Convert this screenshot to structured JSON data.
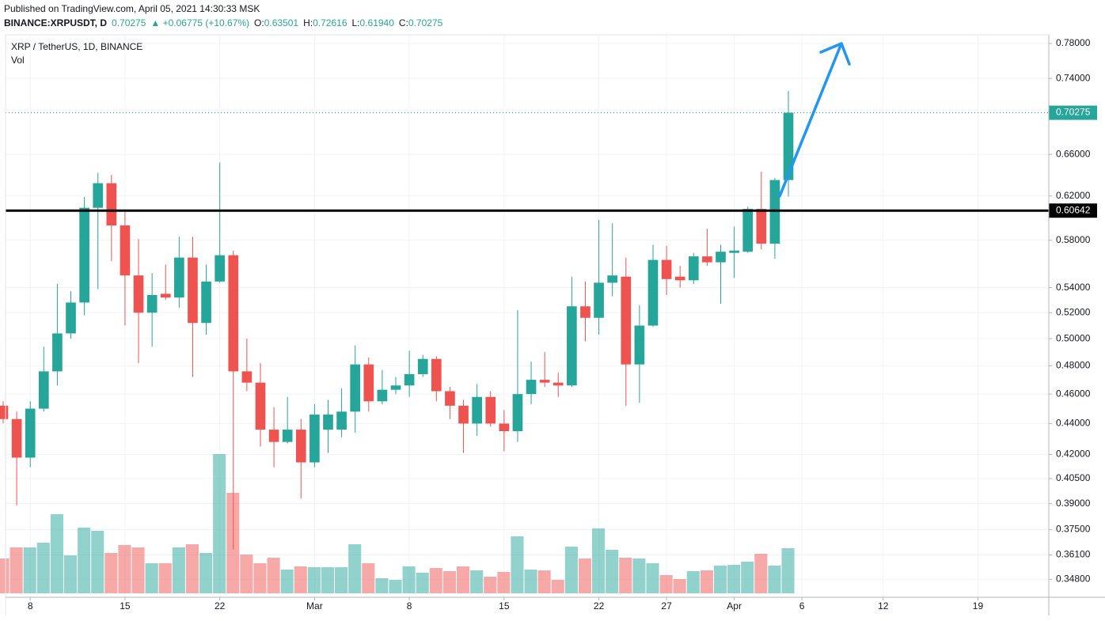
{
  "header": {
    "published": "Published on TradingView.com, April 05, 2021 14:30:33 MSK",
    "symbol": "BINANCE:XRPUSDT, D",
    "last": "0.70275",
    "change": "▲ +0.06775 (+10.67%)",
    "ohlc": [
      {
        "label": "O:",
        "value": "0.63501"
      },
      {
        "label": "H:",
        "value": "0.72616"
      },
      {
        "label": "L:",
        "value": "0.61940"
      },
      {
        "label": "C:",
        "value": "0.70275"
      }
    ]
  },
  "chart_data": {
    "type": "candlestick",
    "title": "XRP / TetherUS, 1D, BINANCE",
    "volume_label": "Vol",
    "x": [
      "2021-02-06",
      "2021-02-07",
      "2021-02-08",
      "2021-02-09",
      "2021-02-10",
      "2021-02-11",
      "2021-02-12",
      "2021-02-13",
      "2021-02-14",
      "2021-02-15",
      "2021-02-16",
      "2021-02-17",
      "2021-02-18",
      "2021-02-19",
      "2021-02-20",
      "2021-02-21",
      "2021-02-22",
      "2021-02-23",
      "2021-02-24",
      "2021-02-25",
      "2021-02-26",
      "2021-02-27",
      "2021-02-28",
      "2021-03-01",
      "2021-03-02",
      "2021-03-03",
      "2021-03-04",
      "2021-03-05",
      "2021-03-06",
      "2021-03-07",
      "2021-03-08",
      "2021-03-09",
      "2021-03-10",
      "2021-03-11",
      "2021-03-12",
      "2021-03-13",
      "2021-03-14",
      "2021-03-15",
      "2021-03-16",
      "2021-03-17",
      "2021-03-18",
      "2021-03-19",
      "2021-03-20",
      "2021-03-21",
      "2021-03-22",
      "2021-03-23",
      "2021-03-24",
      "2021-03-25",
      "2021-03-26",
      "2021-03-27",
      "2021-03-28",
      "2021-03-29",
      "2021-03-30",
      "2021-03-31",
      "2021-04-01",
      "2021-04-02",
      "2021-04-03",
      "2021-04-04",
      "2021-04-05"
    ],
    "open": [
      0.452,
      0.443,
      0.418,
      0.45,
      0.476,
      0.504,
      0.528,
      0.609,
      0.632,
      0.593,
      0.55,
      0.52,
      0.535,
      0.532,
      0.565,
      0.512,
      0.545,
      0.567,
      0.476,
      0.468,
      0.436,
      0.428,
      0.436,
      0.415,
      0.436,
      0.436,
      0.448,
      0.481,
      0.455,
      0.463,
      0.466,
      0.474,
      0.485,
      0.462,
      0.452,
      0.44,
      0.458,
      0.44,
      0.435,
      0.46,
      0.47,
      0.468,
      0.466,
      0.525,
      0.516,
      0.544,
      0.549,
      0.481,
      0.51,
      0.563,
      0.549,
      0.546,
      0.566,
      0.561,
      0.569,
      0.57,
      0.608,
      0.577,
      0.63501
    ],
    "high": [
      0.455,
      0.448,
      0.455,
      0.494,
      0.543,
      0.537,
      0.619,
      0.642,
      0.64,
      0.605,
      0.581,
      0.552,
      0.559,
      0.583,
      0.583,
      0.559,
      0.652,
      0.571,
      0.5,
      0.482,
      0.451,
      0.458,
      0.443,
      0.453,
      0.456,
      0.464,
      0.495,
      0.486,
      0.477,
      0.472,
      0.491,
      0.488,
      0.487,
      0.465,
      0.456,
      0.467,
      0.462,
      0.449,
      0.522,
      0.483,
      0.49,
      0.475,
      0.549,
      0.545,
      0.598,
      0.595,
      0.565,
      0.526,
      0.576,
      0.575,
      0.558,
      0.569,
      0.59,
      0.576,
      0.592,
      0.61,
      0.643,
      0.637,
      0.72616
    ],
    "low": [
      0.44,
      0.389,
      0.412,
      0.448,
      0.466,
      0.5,
      0.518,
      0.539,
      0.562,
      0.51,
      0.482,
      0.494,
      0.53,
      0.524,
      0.472,
      0.503,
      0.544,
      0.364,
      0.462,
      0.425,
      0.412,
      0.427,
      0.393,
      0.412,
      0.421,
      0.431,
      0.434,
      0.448,
      0.453,
      0.46,
      0.458,
      0.472,
      0.455,
      0.443,
      0.421,
      0.432,
      0.438,
      0.422,
      0.428,
      0.453,
      0.465,
      0.458,
      0.465,
      0.498,
      0.503,
      0.533,
      0.452,
      0.454,
      0.509,
      0.534,
      0.54,
      0.543,
      0.558,
      0.527,
      0.548,
      0.569,
      0.572,
      0.564,
      0.6194
    ],
    "close": [
      0.443,
      0.418,
      0.45,
      0.476,
      0.504,
      0.528,
      0.609,
      0.632,
      0.593,
      0.55,
      0.52,
      0.534,
      0.532,
      0.565,
      0.512,
      0.545,
      0.567,
      0.476,
      0.468,
      0.436,
      0.428,
      0.436,
      0.415,
      0.446,
      0.446,
      0.448,
      0.481,
      0.455,
      0.463,
      0.466,
      0.474,
      0.485,
      0.462,
      0.452,
      0.44,
      0.458,
      0.44,
      0.435,
      0.46,
      0.47,
      0.468,
      0.466,
      0.525,
      0.516,
      0.544,
      0.55,
      0.481,
      0.51,
      0.563,
      0.547,
      0.546,
      0.566,
      0.561,
      0.57,
      0.571,
      0.608,
      0.577,
      0.635,
      0.70275
    ],
    "volume": [
      44,
      58,
      58,
      64,
      100,
      48,
      83,
      79,
      51,
      61,
      58,
      38,
      38,
      58,
      62,
      51,
      176,
      127,
      49,
      38,
      45,
      30,
      34,
      33,
      33,
      33,
      62,
      38,
      19,
      17,
      34,
      26,
      32,
      28,
      34,
      29,
      21,
      27,
      72,
      30,
      29,
      17,
      59,
      44,
      82,
      55,
      45,
      44,
      38,
      23,
      18,
      28,
      29,
      35,
      36,
      40,
      50,
      35,
      57
    ],
    "up_color": "#26a69a",
    "down_color": "#ef5350",
    "xlim": [
      "2021-02-06",
      "2021-04-24"
    ],
    "xticks": [
      {
        "value": "2021-02-08",
        "label": "8"
      },
      {
        "value": "2021-02-15",
        "label": "15"
      },
      {
        "value": "2021-02-22",
        "label": "22"
      },
      {
        "value": "2021-03-01",
        "label": "Mar"
      },
      {
        "value": "2021-03-08",
        "label": "8"
      },
      {
        "value": "2021-03-15",
        "label": "15"
      },
      {
        "value": "2021-03-22",
        "label": "22"
      },
      {
        "value": "2021-03-27",
        "label": "27"
      },
      {
        "value": "2021-04-01",
        "label": "Apr"
      },
      {
        "value": "2021-04-06",
        "label": "6"
      },
      {
        "value": "2021-04-12",
        "label": "12"
      },
      {
        "value": "2021-04-19",
        "label": "19"
      }
    ],
    "ylim": [
      0.3387,
      0.7903
    ],
    "log_scale": true,
    "grid": true,
    "yticks": [
      {
        "value": 0.78,
        "label": "0.78000"
      },
      {
        "value": 0.74,
        "label": "0.74000"
      },
      {
        "value": 0.66,
        "label": "0.66000"
      },
      {
        "value": 0.62,
        "label": "0.62000"
      },
      {
        "value": 0.58,
        "label": "0.58000"
      },
      {
        "value": 0.54,
        "label": "0.54000"
      },
      {
        "value": 0.52,
        "label": "0.52000"
      },
      {
        "value": 0.5,
        "label": "0.50000"
      },
      {
        "value": 0.48,
        "label": "0.48000"
      },
      {
        "value": 0.46,
        "label": "0.46000"
      },
      {
        "value": 0.44,
        "label": "0.44000"
      },
      {
        "value": 0.42,
        "label": "0.42000"
      },
      {
        "value": 0.405,
        "label": "0.40500"
      },
      {
        "value": 0.39,
        "label": "0.39000"
      },
      {
        "value": 0.375,
        "label": "0.37500"
      },
      {
        "value": 0.361,
        "label": "0.36100"
      },
      {
        "value": 0.348,
        "label": "0.34800"
      }
    ],
    "hline": 0.60642,
    "hline_color": "#000000",
    "last_price": 0.70275,
    "arrow_color": "#2196f3"
  }
}
